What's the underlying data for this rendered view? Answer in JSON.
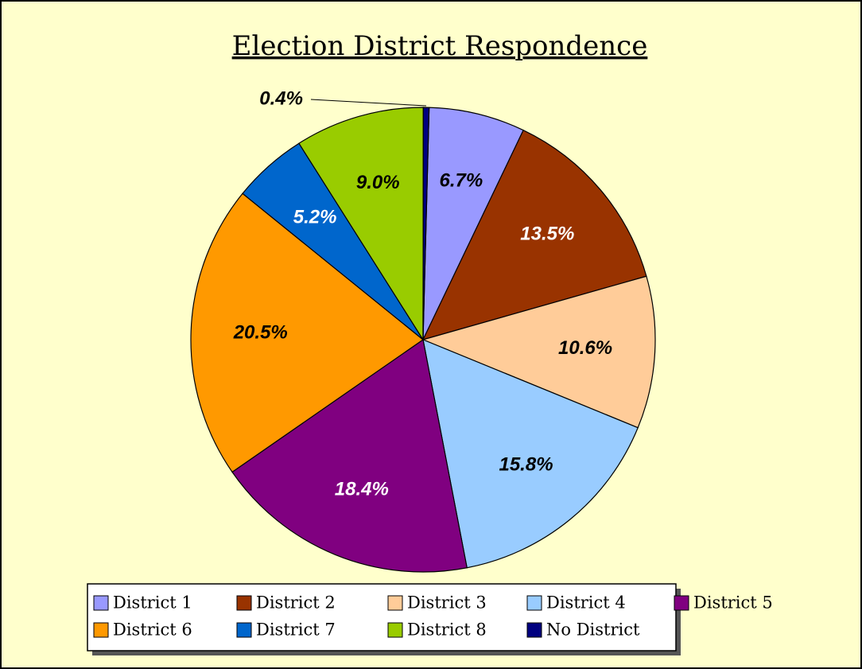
{
  "chart_data": {
    "type": "pie",
    "title": "Election District Respondence",
    "categories": [
      "District 1",
      "District 2",
      "District 3",
      "District 4",
      "District 5",
      "District 6",
      "District 7",
      "District 8",
      "No District"
    ],
    "values": [
      6.7,
      13.5,
      10.6,
      15.8,
      18.4,
      20.5,
      5.2,
      9.0,
      0.4
    ],
    "value_labels": [
      "6.7%",
      "13.5%",
      "10.6%",
      "15.8%",
      "18.4%",
      "20.5%",
      "5.2%",
      "9.0%",
      "0.4%"
    ],
    "colors": [
      "#9999ff",
      "#993300",
      "#ffcc99",
      "#99ccff",
      "#800080",
      "#ff9900",
      "#0066cc",
      "#99cc00",
      "#000080"
    ],
    "legend": "bottom"
  }
}
